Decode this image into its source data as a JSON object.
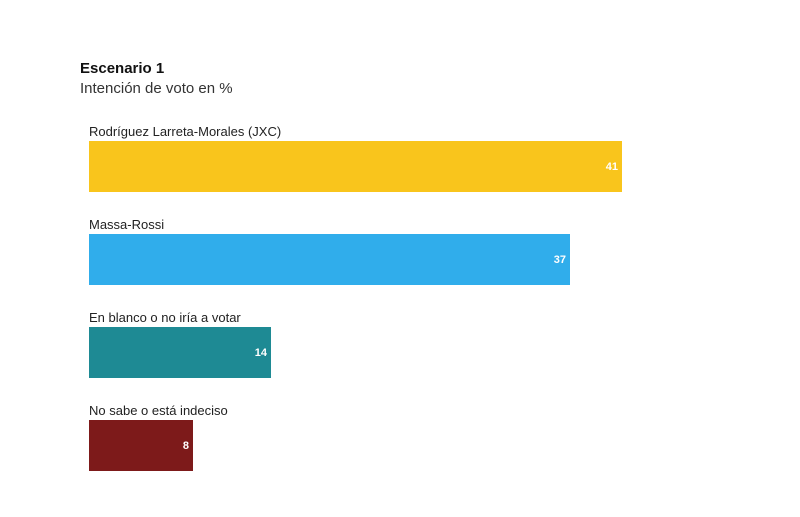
{
  "chart_data": {
    "type": "bar",
    "orientation": "horizontal",
    "title": "Escenario 1",
    "subtitle": "Intención de voto en %",
    "categories": [
      "Rodríguez Larreta-Morales (JXC)",
      "Massa-Rossi",
      "En blanco o no iría a votar",
      "No sabe o está indeciso"
    ],
    "values": [
      41,
      37,
      14,
      8
    ],
    "value_labels": [
      "41",
      "37",
      "14",
      "8"
    ],
    "colors": [
      "#f9c51c",
      "#30adeb",
      "#1e8a94",
      "#7d1a1a"
    ],
    "xlim": [
      0,
      100
    ],
    "grid": false,
    "legend": false
  }
}
